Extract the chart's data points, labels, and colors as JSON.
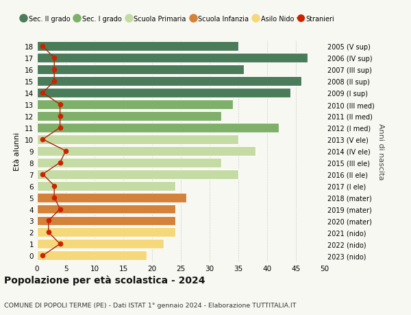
{
  "ages": [
    18,
    17,
    16,
    15,
    14,
    13,
    12,
    11,
    10,
    9,
    8,
    7,
    6,
    5,
    4,
    3,
    2,
    1,
    0
  ],
  "values": [
    35,
    47,
    36,
    46,
    44,
    34,
    32,
    42,
    35,
    38,
    32,
    35,
    24,
    26,
    24,
    24,
    24,
    22,
    19
  ],
  "stranieri": [
    1,
    3,
    3,
    3,
    1,
    4,
    4,
    4,
    1,
    5,
    4,
    1,
    3,
    3,
    4,
    2,
    2,
    4,
    1
  ],
  "right_labels": [
    "2005 (V sup)",
    "2006 (IV sup)",
    "2007 (III sup)",
    "2008 (II sup)",
    "2009 (I sup)",
    "2010 (III med)",
    "2011 (II med)",
    "2012 (I med)",
    "2013 (V ele)",
    "2014 (IV ele)",
    "2015 (III ele)",
    "2016 (II ele)",
    "2017 (I ele)",
    "2018 (mater)",
    "2019 (mater)",
    "2020 (mater)",
    "2021 (nido)",
    "2022 (nido)",
    "2023 (nido)"
  ],
  "bar_colors": [
    "#4a7c59",
    "#4a7c59",
    "#4a7c59",
    "#4a7c59",
    "#4a7c59",
    "#7fb069",
    "#7fb069",
    "#7fb069",
    "#c5dba4",
    "#c5dba4",
    "#c5dba4",
    "#c5dba4",
    "#c5dba4",
    "#d4813a",
    "#d4813a",
    "#d4813a",
    "#f5d87a",
    "#f5d87a",
    "#f5d87a"
  ],
  "legend_labels": [
    "Sec. II grado",
    "Sec. I grado",
    "Scuola Primaria",
    "Scuola Infanzia",
    "Asilo Nido",
    "Stranieri"
  ],
  "legend_colors": [
    "#4a7c59",
    "#7fb069",
    "#c5dba4",
    "#d4813a",
    "#f5d87a",
    "#cc2200"
  ],
  "ylabel": "Età alunni",
  "right_ylabel": "Anni di nascita",
  "title": "Popolazione per età scolastica - 2024",
  "subtitle": "COMUNE DI POPOLI TERME (PE) - Dati ISTAT 1° gennaio 2024 - Elaborazione TUTTITALIA.IT",
  "xlim": [
    0,
    50
  ],
  "background_color": "#f8f8f2",
  "stranieri_color": "#cc2200",
  "stranieri_line_color": "#aa2200"
}
